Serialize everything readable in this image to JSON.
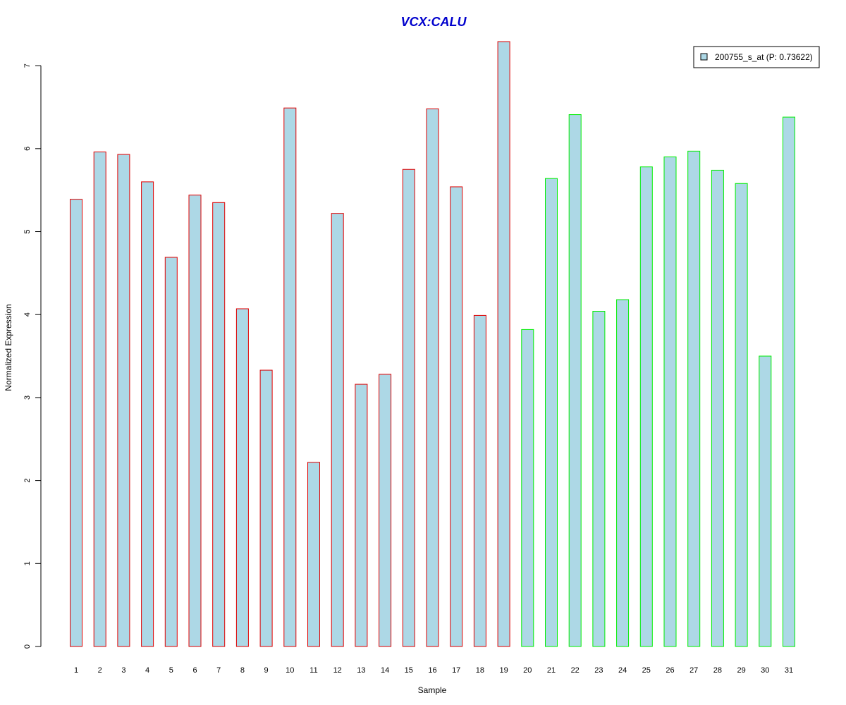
{
  "chart_data": {
    "type": "bar",
    "title": "VCX:CALU",
    "xlabel": "Sample",
    "ylabel": "Normalized Expression",
    "categories": [
      "1",
      "2",
      "3",
      "4",
      "5",
      "6",
      "7",
      "8",
      "9",
      "10",
      "11",
      "12",
      "13",
      "14",
      "15",
      "16",
      "17",
      "18",
      "19",
      "20",
      "21",
      "22",
      "23",
      "24",
      "25",
      "26",
      "27",
      "28",
      "29",
      "30",
      "31"
    ],
    "series": [
      {
        "name": "200755_s_at (P: 0.73622)",
        "values": [
          5.39,
          5.96,
          5.93,
          5.6,
          4.69,
          5.44,
          5.35,
          4.07,
          3.33,
          6.49,
          2.22,
          5.22,
          3.16,
          3.28,
          5.75,
          6.48,
          5.54,
          3.99,
          7.29,
          3.82,
          5.64,
          6.41,
          4.04,
          4.18,
          5.78,
          5.9,
          5.97,
          5.74,
          5.58,
          3.5,
          6.38
        ]
      }
    ],
    "groups": [
      {
        "range": [
          1,
          19
        ],
        "border_color": "#e00000"
      },
      {
        "range": [
          20,
          31
        ],
        "border_color": "#00ee00"
      }
    ],
    "yticks": [
      "0",
      "1",
      "2",
      "3",
      "4",
      "5",
      "6",
      "7"
    ],
    "ylim": [
      0,
      7.29
    ],
    "fill_color": "#add8e6",
    "title_color": "#0000cd",
    "grid": false,
    "legend": {
      "placement": "top-right",
      "label": "200755_s_at (P: 0.73622)"
    }
  }
}
